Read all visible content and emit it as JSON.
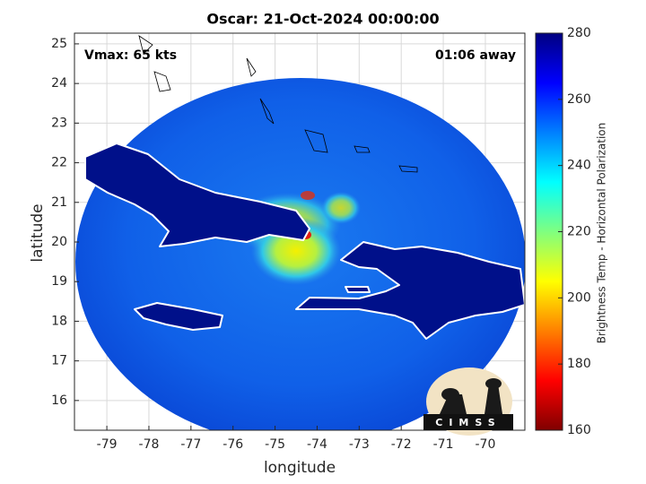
{
  "chart_data": {
    "type": "map",
    "title": "Oscar: 21-Oct-2024 00:00:00",
    "annotations": [
      "Vmax: 65 kts",
      "01:06 away"
    ],
    "xlabel": "longitude",
    "ylabel": "latitude",
    "xlim": [
      -79.77,
      -69.06
    ],
    "ylim": [
      15.25,
      25.27
    ],
    "xticks": [
      -79,
      -78,
      -77,
      -76,
      -75,
      -74,
      -73,
      -72,
      -71,
      -70
    ],
    "yticks": [
      16,
      17,
      18,
      19,
      20,
      21,
      22,
      23,
      24,
      25
    ],
    "grid": true,
    "colorbar": {
      "label": "Brightness Temp - Horizontal Polarization",
      "colormap": "jet",
      "lim": [
        160,
        280
      ],
      "ticks": [
        160,
        180,
        200,
        220,
        240,
        260,
        280
      ]
    },
    "logo": "CIMSS"
  }
}
